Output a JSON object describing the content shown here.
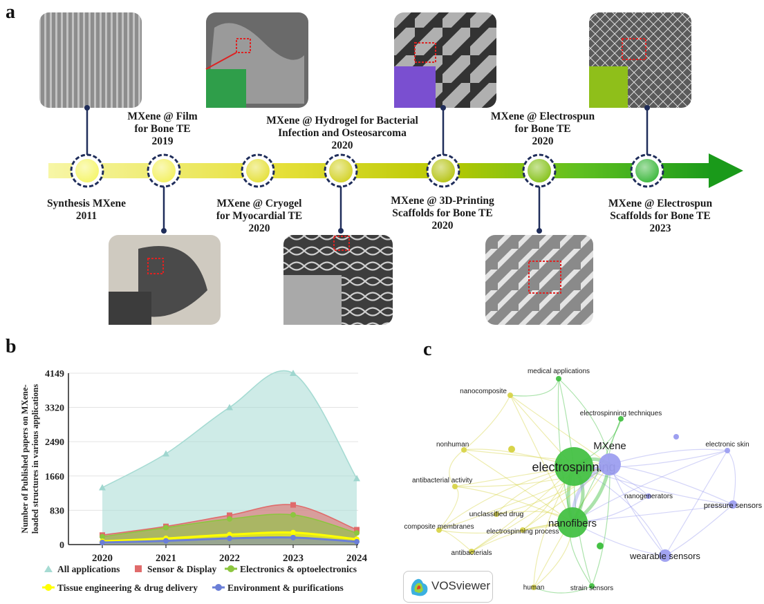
{
  "panels": {
    "a": "a",
    "b": "b",
    "c": "c"
  },
  "timeline": {
    "milestones": [
      {
        "lines": [
          "Synthesis MXene",
          "2011"
        ]
      },
      {
        "lines": [
          "MXene @ Film",
          "for Bone TE",
          "2019"
        ]
      },
      {
        "lines": [
          "MXene @ Cryogel",
          "for Myocardial TE",
          "2020"
        ]
      },
      {
        "lines": [
          "MXene @ Hydrogel for Bacterial",
          "Infection and Osteosarcoma",
          "2020"
        ]
      },
      {
        "lines": [
          "MXene @ 3D-Printing",
          "Scaffolds for Bone TE",
          "2020"
        ]
      },
      {
        "lines": [
          "MXene @ Electrospun",
          "for Bone TE",
          "2020"
        ]
      },
      {
        "lines": [
          "MXene @ Electrospun",
          "Scaffolds for Bone TE",
          "2023"
        ]
      }
    ],
    "micrographs": [
      "MXene layered SEM micrograph",
      "Porous SEM micrograph with green inset",
      "3D-printed fiber SEM micrograph",
      "Electrospun fiber mat SEM micrograph",
      "Flexible MXene film photograph",
      "Porous scaffold SEM micrograph",
      "Electrospun fiber SEM micrograph"
    ],
    "colors": {
      "start": "#f5f27a",
      "end": "#1a9a1a",
      "ring": "#1f2d5a"
    }
  },
  "chart_data": {
    "type": "area",
    "categories": [
      "2020",
      "2021",
      "2022",
      "2023",
      "2024"
    ],
    "ylabel": "Number of Published papers on MXene-loaded structures in various applications",
    "ylim": [
      0,
      4149
    ],
    "yticks": [
      "0",
      "830",
      "1660",
      "2490",
      "3320",
      "4149"
    ],
    "grid": true,
    "legend_position": "bottom",
    "series": [
      {
        "name": "All applications",
        "values": [
          1380,
          2200,
          3320,
          4149,
          1600
        ],
        "color": "#a6dbd3",
        "marker": "triangle"
      },
      {
        "name": "Sensor & Display",
        "values": [
          230,
          440,
          710,
          960,
          360
        ],
        "color": "#e06b6b",
        "marker": "square"
      },
      {
        "name": "Electronics & optoelectronics",
        "values": [
          190,
          410,
          620,
          720,
          280
        ],
        "color": "#8cc63f",
        "marker": "circle"
      },
      {
        "name": "Tissue engineering & drug delivery",
        "values": [
          80,
          150,
          240,
          290,
          130
        ],
        "color": "#ffff00",
        "marker": "circle"
      },
      {
        "name": "Environment & purifications",
        "values": [
          50,
          90,
          150,
          170,
          70
        ],
        "color": "#6b7fd7",
        "marker": "circle"
      }
    ]
  },
  "network": {
    "brand": "VOSviewer",
    "nodes": [
      {
        "label": "electrospinning",
        "cluster": "green"
      },
      {
        "label": "MXene",
        "cluster": "blue"
      },
      {
        "label": "nanofibers",
        "cluster": "green"
      },
      {
        "label": "medical applications",
        "cluster": "green"
      },
      {
        "label": "nanocomposite",
        "cluster": "yellow"
      },
      {
        "label": "electrospinning techniques",
        "cluster": "green"
      },
      {
        "label": "nonhuman",
        "cluster": "yellow"
      },
      {
        "label": "electronic skin",
        "cluster": "blue"
      },
      {
        "label": "antibacterial activity",
        "cluster": "yellow"
      },
      {
        "label": "nanogenerators",
        "cluster": "blue"
      },
      {
        "label": "pressure sensors",
        "cluster": "blue"
      },
      {
        "label": "unclassified drug",
        "cluster": "yellow"
      },
      {
        "label": "composite membranes",
        "cluster": "yellow"
      },
      {
        "label": "electrospinning process",
        "cluster": "yellow"
      },
      {
        "label": "antibacterials",
        "cluster": "yellow"
      },
      {
        "label": "wearable sensors",
        "cluster": "blue"
      },
      {
        "label": "human",
        "cluster": "yellow"
      },
      {
        "label": "strain sensors",
        "cluster": "green"
      }
    ],
    "colors": {
      "green": "#44c144",
      "blue": "#9d9ff0",
      "yellow": "#d8d44a"
    }
  }
}
